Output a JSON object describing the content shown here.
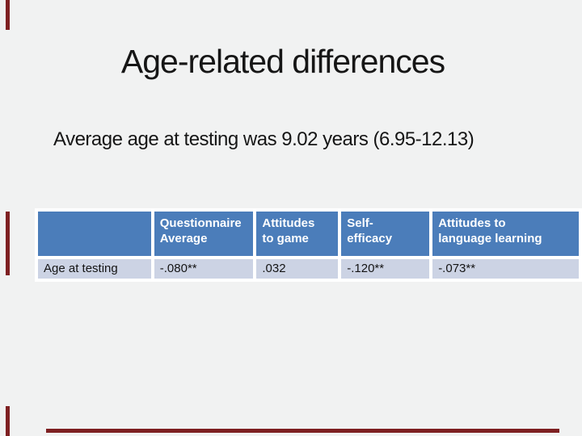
{
  "slide": {
    "title": "Age-related differences",
    "subtitle": "Average age at testing was 9.02 years (6.95-12.13)"
  },
  "table": {
    "columns": [
      "",
      "Questionnaire\nAverage",
      "Attitudes\nto game",
      "Self-\nefficacy",
      "Attitudes to\nlanguage learning"
    ],
    "rows": [
      {
        "label": "Age at testing",
        "values": [
          "-.080**",
          ".032",
          "-.120**",
          "-.073**"
        ]
      }
    ]
  },
  "colors": {
    "background": "#f1f2f2",
    "header_bg": "#4b7dba",
    "row_bg": "#ccd3e4",
    "border_gap": "#ffffff",
    "accent_border": "#7e2022",
    "header_text": "#ffffff",
    "body_text": "#161616"
  },
  "chart_data": {
    "type": "table",
    "title": "Age-related differences",
    "note": "Average age at testing was 9.02 years (6.95-12.13)",
    "columns": [
      "Questionnaire Average",
      "Attitudes to game",
      "Self-efficacy",
      "Attitudes to language learning"
    ],
    "row_label": "Age at testing",
    "values": [
      "-.080**",
      ".032",
      "-.120**",
      "-.073**"
    ]
  }
}
